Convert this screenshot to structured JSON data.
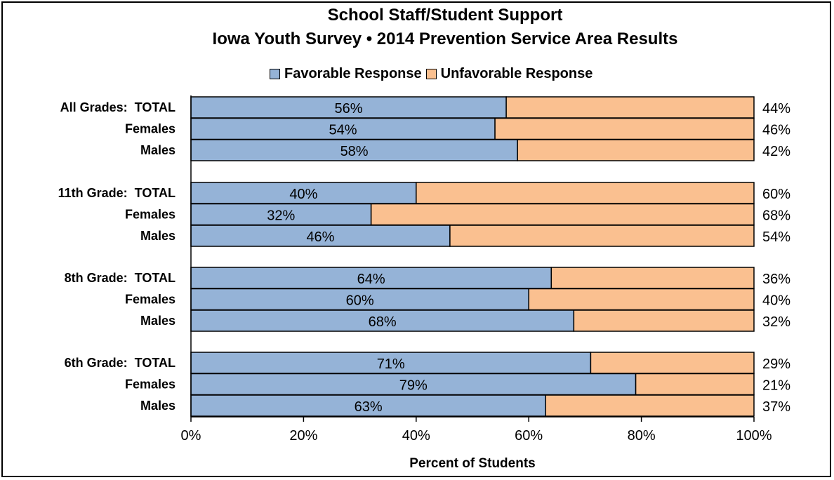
{
  "title": "School Staff/Student Support",
  "subtitle": "Iowa Youth Survey • 2014 Prevention Service Area Results",
  "colors": {
    "favorable": "#95b3d7",
    "unfavorable": "#fac090",
    "border": "#000000"
  },
  "legend": [
    {
      "label": "Favorable Response",
      "color_key": "favorable"
    },
    {
      "label": "Unfavorable Response",
      "color_key": "unfavorable"
    }
  ],
  "chart_data": {
    "type": "bar",
    "orientation": "horizontal",
    "stacked": true,
    "title": "School Staff/Student Support",
    "subtitle": "Iowa Youth Survey • 2014 Prevention Service Area Results",
    "xlabel": "Percent of Students",
    "xlim": [
      0,
      100
    ],
    "x_ticks": [
      "0%",
      "20%",
      "40%",
      "60%",
      "80%",
      "100%"
    ],
    "legend_position": "top",
    "grid": false,
    "groups": [
      {
        "categories": [
          "All Grades:  TOTAL",
          "Females",
          "Males"
        ]
      },
      {
        "categories": [
          "11th Grade:  TOTAL",
          "Females",
          "Males"
        ]
      },
      {
        "categories": [
          "8th Grade:  TOTAL",
          "Females",
          "Males"
        ]
      },
      {
        "categories": [
          "6th Grade:  TOTAL",
          "Females",
          "Males"
        ]
      }
    ],
    "categories": [
      "All Grades:  TOTAL",
      "Females",
      "Males",
      "11th Grade:  TOTAL",
      "Females",
      "Males",
      "8th Grade:  TOTAL",
      "Females",
      "Males",
      "6th Grade:  TOTAL",
      "Females",
      "Males"
    ],
    "series": [
      {
        "name": "Favorable Response",
        "values": [
          56,
          54,
          58,
          40,
          32,
          46,
          64,
          60,
          68,
          71,
          79,
          63
        ],
        "labels": [
          "56%",
          "54%",
          "58%",
          "40%",
          "32%",
          "46%",
          "64%",
          "60%",
          "68%",
          "71%",
          "79%",
          "63%"
        ]
      },
      {
        "name": "Unfavorable Response",
        "values": [
          44,
          46,
          42,
          60,
          68,
          54,
          36,
          40,
          32,
          29,
          21,
          37
        ],
        "labels": [
          "44%",
          "46%",
          "42%",
          "60%",
          "68%",
          "54%",
          "36%",
          "40%",
          "32%",
          "29%",
          "21%",
          "37%"
        ]
      }
    ]
  }
}
